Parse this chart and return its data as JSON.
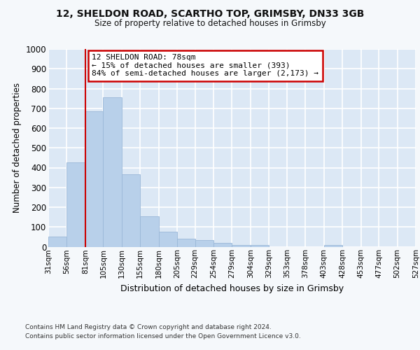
{
  "title1": "12, SHELDON ROAD, SCARTHO TOP, GRIMSBY, DN33 3GB",
  "title2": "Size of property relative to detached houses in Grimsby",
  "xlabel": "Distribution of detached houses by size in Grimsby",
  "ylabel": "Number of detached properties",
  "footnote1": "Contains HM Land Registry data © Crown copyright and database right 2024.",
  "footnote2": "Contains public sector information licensed under the Open Government Licence v3.0.",
  "annotation_line1": "12 SHELDON ROAD: 78sqm",
  "annotation_line2": "← 15% of detached houses are smaller (393)",
  "annotation_line3": "84% of semi-detached houses are larger (2,173) →",
  "bar_left_edges": [
    31,
    56,
    81,
    105,
    130,
    155,
    180,
    205,
    229,
    254,
    279,
    304,
    329,
    353,
    378,
    403,
    428,
    453,
    477,
    502
  ],
  "bar_widths": [
    25,
    25,
    24,
    25,
    25,
    25,
    25,
    24,
    25,
    25,
    25,
    25,
    24,
    25,
    25,
    25,
    25,
    24,
    25,
    25
  ],
  "bar_heights": [
    52,
    425,
    685,
    755,
    365,
    153,
    75,
    40,
    32,
    18,
    10,
    8,
    0,
    0,
    0,
    8,
    0,
    0,
    0,
    0
  ],
  "bar_color": "#b8d0ea",
  "bar_edge_color": "#9ab8d8",
  "vline_color": "#cc0000",
  "vline_x": 81,
  "annotation_box_color": "#cc0000",
  "annotation_fill": "#ffffff",
  "background_color": "#f5f8fb",
  "plot_bg_color": "#dce8f5",
  "grid_color": "#ffffff",
  "ylim": [
    0,
    1000
  ],
  "yticks": [
    0,
    100,
    200,
    300,
    400,
    500,
    600,
    700,
    800,
    900,
    1000
  ],
  "xlim": [
    31,
    527
  ],
  "xtick_labels": [
    "31sqm",
    "56sqm",
    "81sqm",
    "105sqm",
    "130sqm",
    "155sqm",
    "180sqm",
    "205sqm",
    "229sqm",
    "254sqm",
    "279sqm",
    "304sqm",
    "329sqm",
    "353sqm",
    "378sqm",
    "403sqm",
    "428sqm",
    "453sqm",
    "477sqm",
    "502sqm",
    "527sqm"
  ],
  "xtick_positions": [
    31,
    56,
    81,
    105,
    130,
    155,
    180,
    205,
    229,
    254,
    279,
    304,
    329,
    353,
    378,
    403,
    428,
    453,
    477,
    502,
    527
  ]
}
